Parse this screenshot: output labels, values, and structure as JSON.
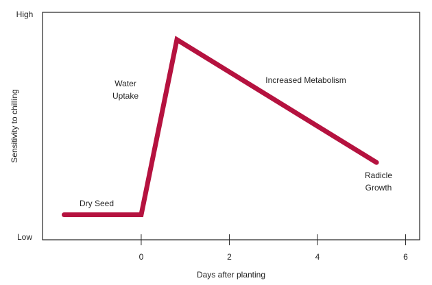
{
  "chart_data": {
    "type": "line",
    "x_label": "Days after planting",
    "y_label": "Sensitivity to chilling",
    "xlim": [
      -2.24,
      6.32
    ],
    "xticks": [
      0,
      2,
      4,
      6
    ],
    "ylim": [
      0,
      100
    ],
    "yticks": [
      {
        "value": 0,
        "label": "Low"
      },
      {
        "value": 100,
        "label": "High"
      }
    ],
    "series": [
      {
        "color": "#b5123f",
        "x": [
          -1.75,
          0,
          0.81,
          5.34
        ],
        "values": [
          11,
          11,
          88,
          34
        ]
      }
    ],
    "annotations": [
      "Water Uptake",
      "Increased Metabolism",
      "Dry Seed",
      "Radicle Growth"
    ]
  }
}
